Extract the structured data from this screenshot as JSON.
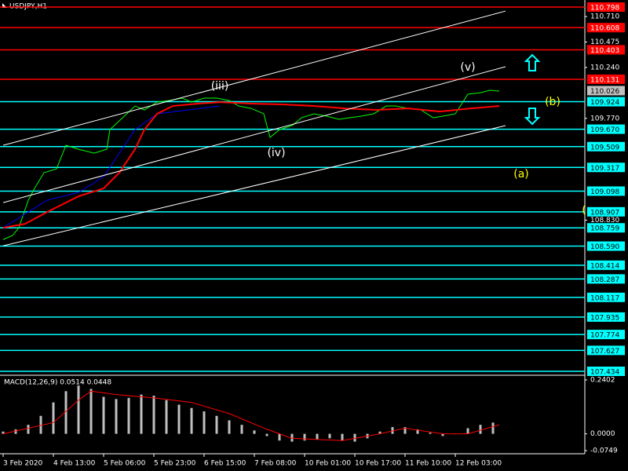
{
  "chart_data": [
    {
      "type": "line",
      "title": "USDJPY,H1",
      "xlim": [
        -1,
        185.25
      ],
      "ylim": [
        107.405,
        110.863
      ],
      "yticks": [
        {
          "value": 110.71,
          "label": "110.710"
        },
        110.475,
        {
          "value": 110.24,
          "label": "110.240"
        },
        {
          "value": 109.77,
          "label": "109.770"
        },
        {
          "value": 108.83,
          "label": "108.830"
        }
      ],
      "levels": [
        {
          "value": 110.798,
          "color": "#ff0000"
        },
        {
          "value": 110.608,
          "color": "#ff0000"
        },
        {
          "value": 110.403,
          "color": "#ff0000"
        },
        {
          "value": 110.131,
          "color": "#ff0000"
        },
        {
          "value": 109.924,
          "color": "#00ffff"
        },
        {
          "value": 109.67,
          "label": "109.670",
          "color": "#00ffff"
        },
        {
          "value": 109.509,
          "color": "#00ffff"
        },
        {
          "value": 109.317,
          "color": "#00ffff"
        },
        {
          "value": 109.098,
          "color": "#00ffff"
        },
        {
          "value": 108.907,
          "color": "#00ffff"
        },
        {
          "value": 108.759,
          "color": "#00ffff"
        },
        {
          "value": 108.59,
          "label": "108.590",
          "color": "#00ffff"
        },
        {
          "value": 108.414,
          "color": "#00ffff"
        },
        {
          "value": 108.287,
          "color": "#00ffff"
        },
        {
          "value": 108.117,
          "color": "#00ffff"
        },
        {
          "value": 107.935,
          "color": "#00ffff"
        },
        {
          "value": 107.774,
          "color": "#00ffff"
        },
        {
          "value": 107.627,
          "color": "#00ffff"
        },
        {
          "value": 107.434,
          "color": "#00ffff"
        }
      ],
      "current_price": {
        "value": 110.026,
        "color": "#c0c0c0"
      },
      "series": [
        {
          "color": "#00ff00",
          "x": [
            0,
            3,
            5,
            8,
            10,
            13,
            17,
            20,
            24,
            29,
            33,
            34,
            38,
            42,
            45,
            49,
            53,
            57,
            60,
            64,
            68,
            72,
            75,
            79,
            83,
            85,
            88,
            92,
            95,
            99,
            103,
            107,
            110,
            114,
            118,
            122,
            125,
            129,
            133,
            137,
            140,
            144,
            148,
            152,
            155,
            158
          ],
          "values": [
            108.651,
            108.688,
            108.76,
            109.014,
            109.123,
            109.268,
            109.304,
            109.521,
            109.485,
            109.449,
            109.485,
            109.666,
            109.775,
            109.884,
            109.848,
            109.92,
            109.935,
            109.957,
            109.92,
            109.957,
            109.957,
            109.935,
            109.884,
            109.862,
            109.812,
            109.594,
            109.666,
            109.703,
            109.775,
            109.812,
            109.79,
            109.761,
            109.775,
            109.79,
            109.812,
            109.884,
            109.884,
            109.862,
            109.848,
            109.775,
            109.79,
            109.812,
            109.993,
            110.007,
            110.029,
            110.022
          ]
        },
        {
          "color": "#0000ff",
          "x": [
            0,
            14,
            24,
            32,
            37,
            42,
            49,
            59,
            69
          ],
          "values": [
            108.76,
            109.014,
            109.086,
            109.231,
            109.449,
            109.666,
            109.812,
            109.848,
            109.884
          ]
        },
        {
          "color": "#ff0000",
          "x": [
            0,
            7,
            14,
            24,
            32,
            37,
            42,
            45,
            49,
            54,
            62,
            69,
            79,
            89,
            99,
            109,
            119,
            129,
            139,
            149,
            158
          ],
          "values": [
            108.76,
            108.796,
            108.905,
            109.05,
            109.123,
            109.268,
            109.485,
            109.666,
            109.812,
            109.884,
            109.906,
            109.92,
            109.906,
            109.899,
            109.884,
            109.862,
            109.848,
            109.862,
            109.833,
            109.862,
            109.884
          ]
        },
        {
          "color": "#ffffff",
          "x": [
            0,
            160
          ],
          "values": [
            109.521,
            110.761
          ]
        },
        {
          "color": "#ffffff",
          "x": [
            0,
            160
          ],
          "values": [
            108.992,
            110.247
          ]
        },
        {
          "color": "#ffffff",
          "x": [
            0,
            160
          ],
          "values": [
            108.593,
            109.703
          ]
        }
      ],
      "annotations": [
        {
          "text": "(iii)",
          "x": 69,
          "y": 110.065,
          "color": "#ffffff"
        },
        {
          "text": "(iv)",
          "x": 87,
          "y": 109.449,
          "color": "#ffffff"
        },
        {
          "text": "(v)",
          "x": 148,
          "y": 110.239,
          "color": "#ffffff"
        },
        {
          "text": "(b)",
          "x": 175,
          "y": 109.92,
          "color": "#ffff00"
        },
        {
          "text": "(a)",
          "x": 165,
          "y": 109.253,
          "color": "#ffff00"
        },
        {
          "text": "(",
          "x": 185,
          "y": 108.92,
          "color": "#ffff00"
        }
      ]
    },
    {
      "type": "bar",
      "title": "MACD(12,26,9) 0.0514 0.0448",
      "xlim": [
        -1,
        185.25
      ],
      "ylim": [
        -0.0888,
        0.2576
      ],
      "yticks": [
        0.2402,
        {
          "value": 0,
          "label": "0.0000"
        },
        -0.0749
      ],
      "xticks": [
        {
          "value": 0,
          "label": "3 Feb 2020"
        },
        {
          "value": 16,
          "label": "4 Feb 13:00"
        },
        {
          "value": 32,
          "label": "5 Feb 06:00"
        },
        {
          "value": 48,
          "label": "5 Feb 23:00"
        },
        {
          "value": 64,
          "label": "6 Feb 15:00"
        },
        {
          "value": 80,
          "label": "7 Feb 08:00"
        },
        {
          "value": 96,
          "label": "10 Feb 01:00"
        },
        {
          "value": 112,
          "label": "10 Feb 17:00"
        },
        {
          "value": 128,
          "label": "11 Feb 10:00"
        },
        {
          "value": 144,
          "label": "12 Feb 03:00"
        }
      ],
      "series": [
        {
          "type": "bar",
          "color": "#c0c0c0",
          "x": [
            0,
            4,
            8,
            12,
            16,
            20,
            24,
            28,
            32,
            36,
            40,
            44,
            48,
            52,
            56,
            60,
            64,
            68,
            72,
            76,
            80,
            84,
            88,
            92,
            96,
            100,
            104,
            108,
            112,
            116,
            120,
            124,
            128,
            132,
            136,
            140,
            144,
            148,
            152,
            156
          ],
          "values": [
            0.01,
            0.02,
            0.04,
            0.08,
            0.14,
            0.19,
            0.215,
            0.2,
            0.165,
            0.155,
            0.16,
            0.175,
            0.17,
            0.15,
            0.13,
            0.115,
            0.1,
            0.08,
            0.06,
            0.04,
            0.015,
            -0.01,
            -0.03,
            -0.035,
            -0.03,
            -0.025,
            -0.02,
            -0.03,
            -0.035,
            -0.02,
            0.01,
            0.03,
            0.03,
            0.02,
            0.005,
            -0.01,
            0,
            0.025,
            0.04,
            0.05
          ]
        },
        {
          "type": "line",
          "color": "#ff0000",
          "x": [
            0,
            16,
            24,
            28,
            36,
            48,
            60,
            72,
            84,
            92,
            108,
            120,
            128,
            140,
            148,
            158
          ],
          "values": [
            0,
            0.05,
            0.15,
            0.19,
            0.175,
            0.16,
            0.14,
            0.09,
            0.02,
            -0.02,
            -0.03,
            0,
            0.025,
            0,
            0,
            0.04
          ]
        }
      ]
    }
  ]
}
